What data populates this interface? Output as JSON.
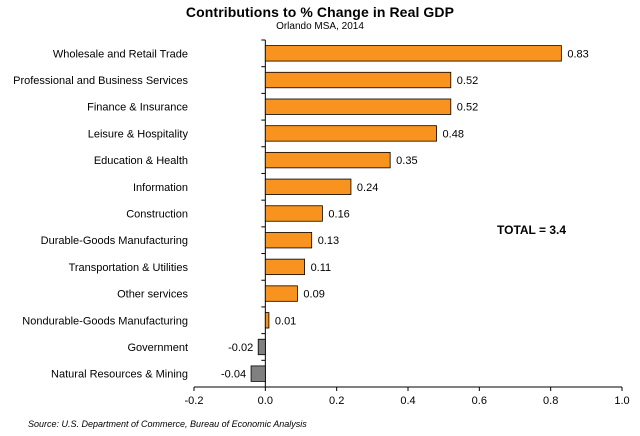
{
  "chart_data": {
    "type": "bar",
    "orientation": "horizontal",
    "title": "Contributions to % Change in Real GDP",
    "subtitle": "Orlando  MSA, 2014",
    "categories": [
      "Wholesale and Retail Trade",
      "Professional and Business Services",
      "Finance & Insurance",
      "Leisure & Hospitality",
      "Education & Health",
      "Information",
      "Construction",
      "Durable-Goods Manufacturing",
      "Transportation & Utilities",
      "Other services",
      "Nondurable-Goods Manufacturing",
      "Government",
      "Natural Resources & Mining"
    ],
    "values": [
      0.83,
      0.52,
      0.52,
      0.48,
      0.35,
      0.24,
      0.16,
      0.13,
      0.11,
      0.09,
      0.01,
      -0.02,
      -0.04
    ],
    "data_labels": [
      "0.83",
      "0.52",
      "0.52",
      "0.48",
      "0.35",
      "0.24",
      "0.16",
      "0.13",
      "0.11",
      "0.09",
      "0.01",
      "-0.02",
      "-0.04"
    ],
    "xlim": [
      -0.2,
      1.0
    ],
    "xticks": [
      -0.2,
      0.0,
      0.2,
      0.4,
      0.6,
      0.8,
      1.0
    ],
    "xtick_labels": [
      "-0.2",
      "0.0",
      "0.2",
      "0.4",
      "0.6",
      "0.8",
      "1.0"
    ],
    "xlabel": "",
    "ylabel": "",
    "grid": false,
    "legend": "none",
    "colors": {
      "positive": "#f7931e",
      "negative": "#808080",
      "bar_stroke": "#000000",
      "axis": "#000000"
    }
  },
  "annotation": "TOTAL = 3.4",
  "source": "Source: U.S. Department of Commerce, Bureau of Economic Analysis"
}
